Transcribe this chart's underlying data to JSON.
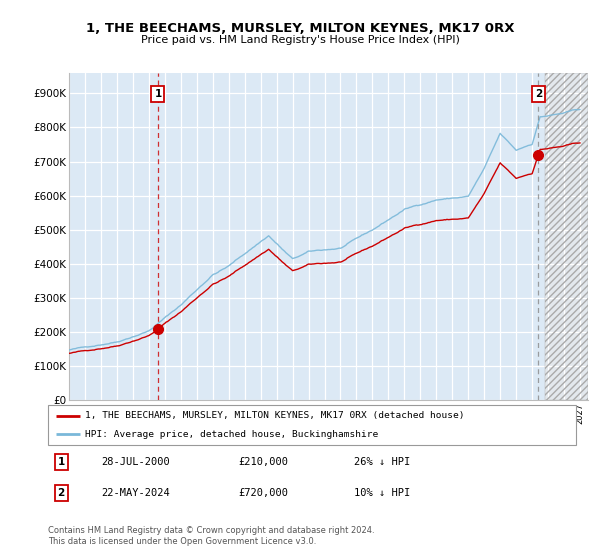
{
  "title": "1, THE BEECHAMS, MURSLEY, MILTON KEYNES, MK17 0RX",
  "subtitle": "Price paid vs. HM Land Registry's House Price Index (HPI)",
  "background_color": "#dce9f5",
  "hpi_line_color": "#7ab8d9",
  "price_line_color": "#cc0000",
  "marker_color": "#cc0000",
  "ytick_labels": [
    "£0",
    "£100K",
    "£200K",
    "£300K",
    "£400K",
    "£500K",
    "£600K",
    "£700K",
    "£800K",
    "£900K"
  ],
  "yticks": [
    0,
    100000,
    200000,
    300000,
    400000,
    500000,
    600000,
    700000,
    800000,
    900000
  ],
  "ylim_min": 0,
  "ylim_max": 960000,
  "xlim_start": 1995.0,
  "xlim_end": 2027.5,
  "sale1_year": 2000.57,
  "sale1_price": 210000,
  "sale2_year": 2024.39,
  "sale2_price": 720000,
  "legend_line1": "1, THE BEECHAMS, MURSLEY, MILTON KEYNES, MK17 0RX (detached house)",
  "legend_line2": "HPI: Average price, detached house, Buckinghamshire",
  "table_row1": [
    "1",
    "28-JUL-2000",
    "£210,000",
    "26% ↓ HPI"
  ],
  "table_row2": [
    "2",
    "22-MAY-2024",
    "£720,000",
    "10% ↓ HPI"
  ],
  "footer": "Contains HM Land Registry data © Crown copyright and database right 2024.\nThis data is licensed under the Open Government Licence v3.0.",
  "hatch_region_start": 2024.8,
  "hatch_region_end": 2027.5
}
